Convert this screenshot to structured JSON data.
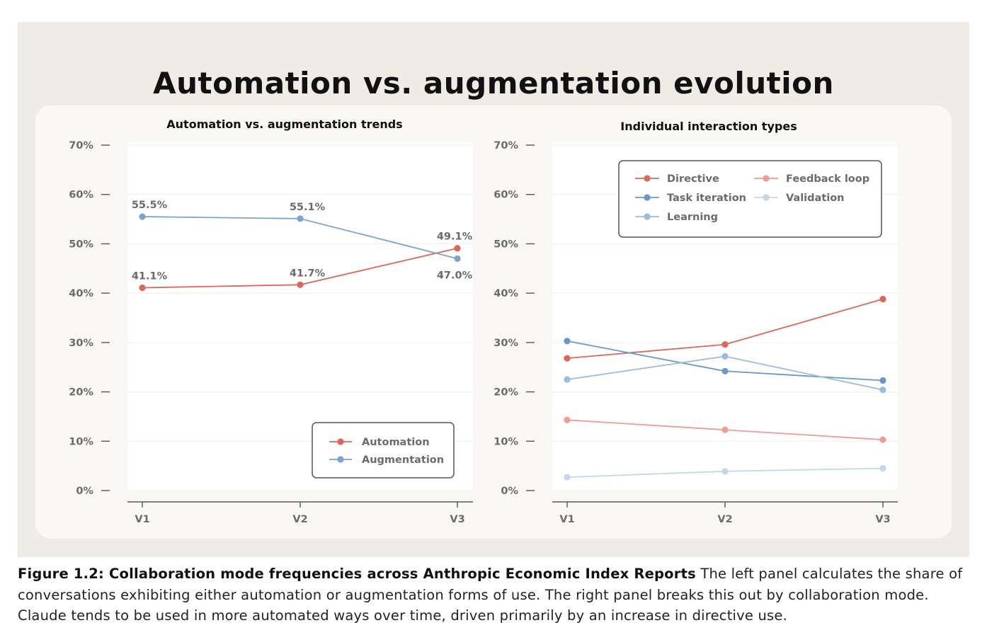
{
  "figure": {
    "title": "Automation vs. augmentation evolution",
    "caption_title": "Figure 1.2: Collaboration mode frequencies across Anthropic Economic Index Reports",
    "caption_text": "The left panel calculates the share of conversations exhibiting either automation or augmentation forms of use. The right panel breaks this out by collaboration mode. Claude tends to be used in more automated ways over time, driven primarily by an increase in directive use."
  },
  "colors": {
    "automation": "#d9685b",
    "augmentation": "#7ba3d0",
    "directive": "#d9685b",
    "task_iteration": "#6d97c7",
    "learning": "#9bbcdc",
    "feedback_loop": "#ee9d91",
    "validation": "#c4d8ec",
    "axis": "#555555",
    "tick_text": "#6b6b6b"
  },
  "chart_data": [
    {
      "type": "line",
      "title": "Automation vs. augmentation trends",
      "categories": [
        "V1",
        "V2",
        "V3"
      ],
      "ylim": [
        0,
        70
      ],
      "yticks": [
        0,
        10,
        20,
        30,
        40,
        50,
        60,
        70
      ],
      "ytick_labels": [
        "0%",
        "10%",
        "20%",
        "30%",
        "40%",
        "50%",
        "60%",
        "70%"
      ],
      "legend_position": "bottom-right",
      "series": [
        {
          "key": "automation",
          "name": "Automation",
          "values": [
            41.1,
            41.7,
            49.1
          ],
          "labels": [
            "41.1%",
            "41.7%",
            "49.1%"
          ]
        },
        {
          "key": "augmentation",
          "name": "Augmentation",
          "values": [
            55.5,
            55.1,
            47.0
          ],
          "labels": [
            "55.5%",
            "55.1%",
            "47.0%"
          ]
        }
      ]
    },
    {
      "type": "line",
      "title": "Individual interaction types",
      "categories": [
        "V1",
        "V2",
        "V3"
      ],
      "ylim": [
        0,
        70
      ],
      "yticks": [
        0,
        10,
        20,
        30,
        40,
        50,
        60,
        70
      ],
      "ytick_labels": [
        "0%",
        "10%",
        "20%",
        "30%",
        "40%",
        "50%",
        "60%",
        "70%"
      ],
      "legend_position": "top",
      "series": [
        {
          "key": "directive",
          "name": "Directive",
          "values": [
            26.8,
            29.6,
            38.8
          ]
        },
        {
          "key": "task_iteration",
          "name": "Task iteration",
          "values": [
            30.3,
            24.2,
            22.3
          ]
        },
        {
          "key": "learning",
          "name": "Learning",
          "values": [
            22.5,
            27.2,
            20.4
          ]
        },
        {
          "key": "feedback_loop",
          "name": "Feedback loop",
          "values": [
            14.3,
            12.3,
            10.3
          ]
        },
        {
          "key": "validation",
          "name": "Validation",
          "values": [
            2.7,
            3.9,
            4.5
          ]
        }
      ]
    }
  ]
}
